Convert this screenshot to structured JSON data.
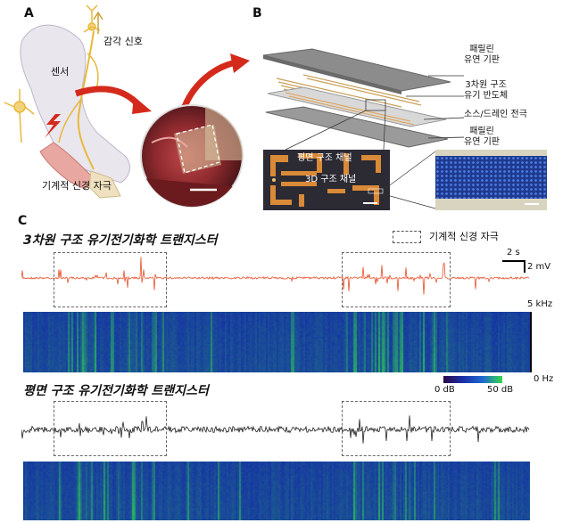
{
  "panels": {
    "a": "A",
    "b": "B",
    "c": "C"
  },
  "panel_a": {
    "sensory_signal": "감각 신호",
    "sensor": "센서",
    "mech_stim": "기계적 신경 자극"
  },
  "panel_b": {
    "layer1": "패릴린\n유연 기판",
    "layer2": "3차원 구조\n유기 반도체",
    "layer3": "소스/드레인 전극",
    "layer4": "패릴린\n유연 기판",
    "planar_channel": "평면 구조 채널",
    "three_d_channel": "3D 구조 채널"
  },
  "panel_c": {
    "legend_mech": "기계적 신경 자극",
    "title_3d": "3차원 구조 유기전기화학 트랜지스터",
    "title_planar": "평면 구조 유기전기화학 트랜지스터",
    "scale_time": "2 s",
    "scale_volt": "2 mV",
    "freq_top": "5 kHz",
    "freq_bottom": "0 Hz",
    "cbar_min": "0 dB",
    "cbar_max": "50 dB"
  },
  "colors": {
    "trace_3d": "#e8502a",
    "trace_planar": "#222222",
    "spec_low": "#1a2fa8",
    "spec_high": "#34d74a",
    "accent_arrow": "#d42a1c"
  }
}
